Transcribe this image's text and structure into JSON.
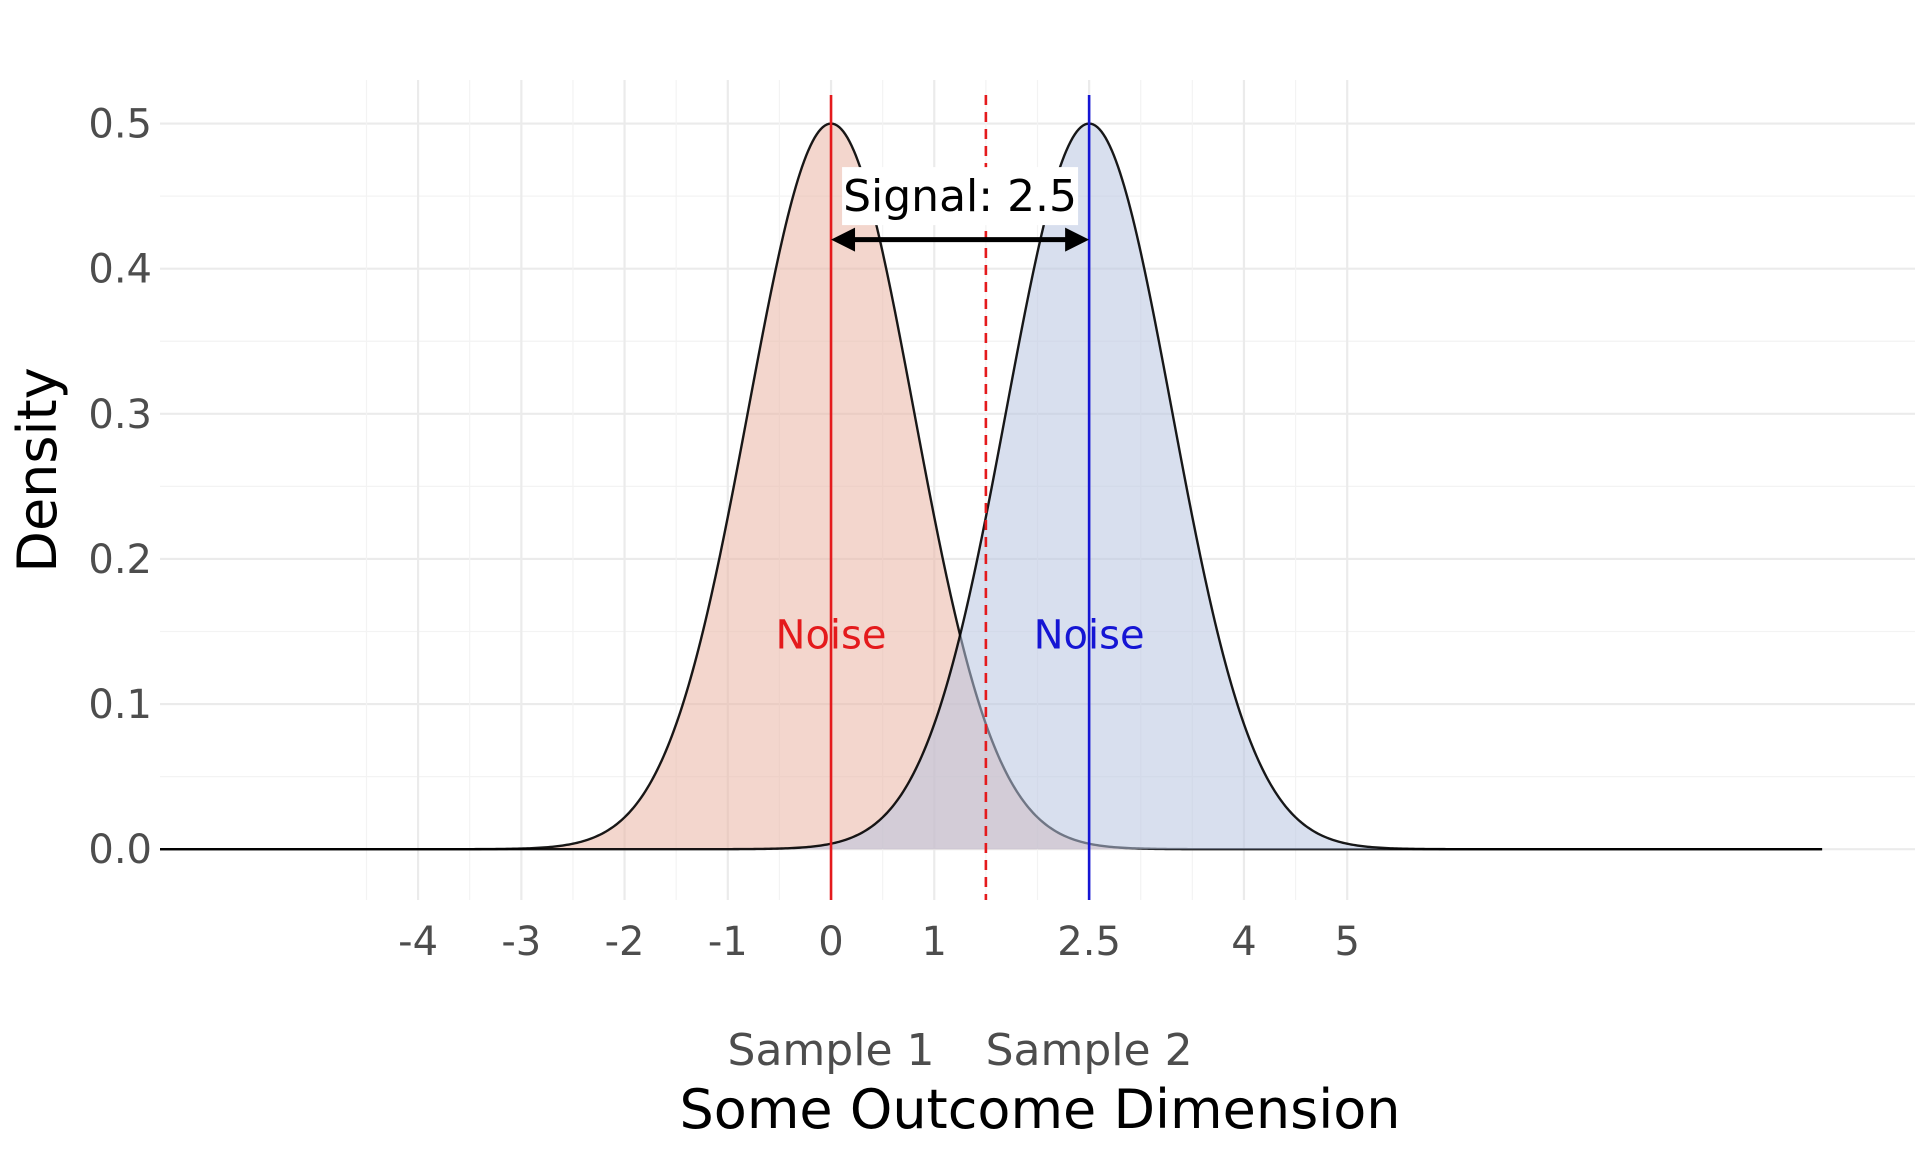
{
  "chart_data": {
    "type": "area",
    "xlabel": "Some Outcome Dimension",
    "ylabel": "Density",
    "xlim": [
      -6.5,
      10.5
    ],
    "ylim": [
      -0.035,
      0.53
    ],
    "x_ticks": [
      -4,
      -3,
      -2,
      -1,
      0,
      1,
      2.5,
      4,
      5
    ],
    "y_ticks": [
      0.0,
      0.1,
      0.2,
      0.3,
      0.4,
      0.5
    ],
    "y_tick_labels": [
      "0.0",
      "0.1",
      "0.2",
      "0.3",
      "0.4",
      "0.5"
    ],
    "x_minor_grid": [
      -4.5,
      -3.5,
      -2.5,
      -1.5,
      -0.5,
      0.5,
      1.5,
      2,
      3,
      3.5,
      4.5
    ],
    "grid": true,
    "category_labels": [
      {
        "text": "Sample 1",
        "x": 0
      },
      {
        "text": "Sample 2",
        "x": 2.5
      }
    ],
    "series": [
      {
        "label": "Noise",
        "mean": 0,
        "sd": 0.8,
        "peak": 0.5,
        "x_range": [
          -6.5,
          9.6
        ],
        "fill": "#e9b4a4",
        "line": "#e41a1c"
      },
      {
        "label": "Noise",
        "mean": 2.5,
        "sd": 0.8,
        "peak": 0.5,
        "x_range": [
          -6.5,
          9.6
        ],
        "fill": "#b8c4e0",
        "line": "#1515d4"
      }
    ],
    "noise_label_y": 0.148,
    "threshold": {
      "x": 1.5,
      "style": "dashed",
      "color": "#e41a1c"
    },
    "signal": {
      "label": "Signal: 2.5",
      "from": 0,
      "to": 2.5,
      "y": 0.42,
      "label_y": 0.45
    }
  }
}
